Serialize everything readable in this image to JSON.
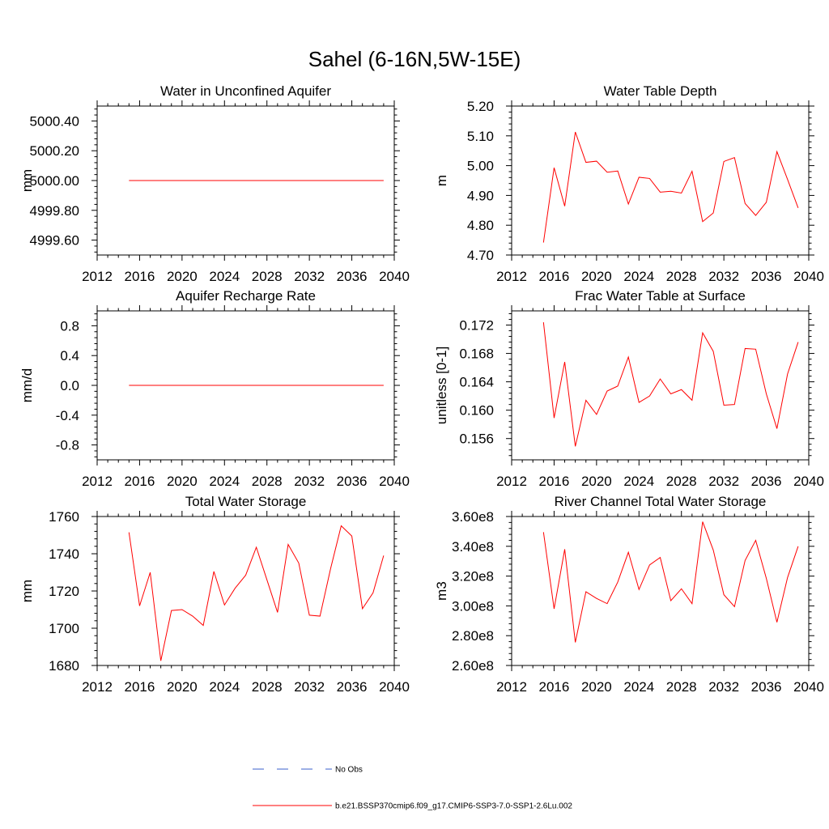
{
  "figure": {
    "title": "Sahel (6-16N,5W-15E)"
  },
  "legend": {
    "items": [
      {
        "label": "No Obs",
        "color": "#3a5fcd",
        "dash": true
      },
      {
        "label": "b.e21.BSSP370cmip6.f09_g17.CMIP6-SSP3-7.0-SSP1-2.6Lu.002",
        "color": "#ff0000",
        "dash": false
      }
    ]
  },
  "chart_data": [
    {
      "type": "line",
      "title": "Water in Unconfined Aquifer",
      "xlabel": "",
      "ylabel": "mm",
      "xlim": [
        2012,
        2040
      ],
      "xticks": [
        2012,
        2016,
        2020,
        2024,
        2028,
        2032,
        2036,
        2040
      ],
      "ylim": [
        4999.5,
        5000.5
      ],
      "yticks": [
        4999.6,
        4999.8,
        5000.0,
        5000.2,
        5000.4
      ],
      "ytick_labels": [
        "4999.60",
        "4999.80",
        "5000.00",
        "5000.20",
        "5000.40"
      ],
      "x": [
        2015,
        2016,
        2017,
        2018,
        2019,
        2020,
        2021,
        2022,
        2023,
        2024,
        2025,
        2026,
        2027,
        2028,
        2029,
        2030,
        2031,
        2032,
        2033,
        2034,
        2035,
        2036,
        2037,
        2038,
        2039
      ],
      "series": [
        {
          "color": "#ff0000",
          "values": [
            5000.0,
            5000.0,
            5000.0,
            5000.0,
            5000.0,
            5000.0,
            5000.0,
            5000.0,
            5000.0,
            5000.0,
            5000.0,
            5000.0,
            5000.0,
            5000.0,
            5000.0,
            5000.0,
            5000.0,
            5000.0,
            5000.0,
            5000.0,
            5000.0,
            5000.0,
            5000.0,
            5000.0,
            5000.0
          ]
        }
      ]
    },
    {
      "type": "line",
      "title": "Water Table Depth",
      "xlabel": "",
      "ylabel": "m",
      "xlim": [
        2012,
        2040
      ],
      "xticks": [
        2012,
        2016,
        2020,
        2024,
        2028,
        2032,
        2036,
        2040
      ],
      "ylim": [
        4.7,
        5.2
      ],
      "yticks": [
        4.7,
        4.8,
        4.9,
        5.0,
        5.1,
        5.2
      ],
      "ytick_labels": [
        "4.70",
        "4.80",
        "4.90",
        "5.00",
        "5.10",
        "5.20"
      ],
      "x": [
        2015,
        2016,
        2017,
        2018,
        2019,
        2020,
        2021,
        2022,
        2023,
        2024,
        2025,
        2026,
        2027,
        2028,
        2029,
        2030,
        2031,
        2032,
        2033,
        2034,
        2035,
        2036,
        2037,
        2038,
        2039
      ],
      "series": [
        {
          "color": "#ff0000",
          "values": [
            4.742,
            4.993,
            4.864,
            5.113,
            5.011,
            5.015,
            4.978,
            4.982,
            4.871,
            4.961,
            4.957,
            4.911,
            4.914,
            4.908,
            4.981,
            4.812,
            4.841,
            5.014,
            5.027,
            4.873,
            4.833,
            4.877,
            5.047,
            4.954,
            4.858
          ]
        }
      ]
    },
    {
      "type": "line",
      "title": "Aquifer Recharge Rate",
      "xlabel": "",
      "ylabel": "mm/d",
      "xlim": [
        2012,
        2040
      ],
      "xticks": [
        2012,
        2016,
        2020,
        2024,
        2028,
        2032,
        2036,
        2040
      ],
      "ylim": [
        -1.0,
        1.0
      ],
      "yticks": [
        -0.8,
        -0.4,
        0.0,
        0.4,
        0.8
      ],
      "ytick_labels": [
        "-0.8",
        "-0.4",
        "0.0",
        "0.4",
        "0.8"
      ],
      "x": [
        2015,
        2016,
        2017,
        2018,
        2019,
        2020,
        2021,
        2022,
        2023,
        2024,
        2025,
        2026,
        2027,
        2028,
        2029,
        2030,
        2031,
        2032,
        2033,
        2034,
        2035,
        2036,
        2037,
        2038,
        2039
      ],
      "series": [
        {
          "color": "#ff0000",
          "values": [
            0,
            0,
            0,
            0,
            0,
            0,
            0,
            0,
            0,
            0,
            0,
            0,
            0,
            0,
            0,
            0,
            0,
            0,
            0,
            0,
            0,
            0,
            0,
            0,
            0
          ]
        }
      ]
    },
    {
      "type": "line",
      "title": "Frac Water Table at Surface",
      "xlabel": "",
      "ylabel": "unitless [0-1]",
      "xlim": [
        2012,
        2040
      ],
      "xticks": [
        2012,
        2016,
        2020,
        2024,
        2028,
        2032,
        2036,
        2040
      ],
      "ylim": [
        0.153,
        0.174
      ],
      "yticks": [
        0.156,
        0.16,
        0.164,
        0.168,
        0.172
      ],
      "ytick_labels": [
        "0.156",
        "0.160",
        "0.164",
        "0.168",
        "0.172"
      ],
      "x": [
        2015,
        2016,
        2017,
        2018,
        2019,
        2020,
        2021,
        2022,
        2023,
        2024,
        2025,
        2026,
        2027,
        2028,
        2029,
        2030,
        2031,
        2032,
        2033,
        2034,
        2035,
        2036,
        2037,
        2038,
        2039
      ],
      "series": [
        {
          "color": "#ff0000",
          "values": [
            0.1724,
            0.1589,
            0.1668,
            0.1549,
            0.1614,
            0.1594,
            0.1627,
            0.1634,
            0.1675,
            0.1611,
            0.162,
            0.1644,
            0.1623,
            0.1629,
            0.1614,
            0.1709,
            0.1683,
            0.1607,
            0.1608,
            0.1687,
            0.1686,
            0.1623,
            0.1574,
            0.1651,
            0.1696
          ]
        }
      ]
    },
    {
      "type": "line",
      "title": "Total Water Storage",
      "xlabel": "",
      "ylabel": "mm",
      "xlim": [
        2012,
        2040
      ],
      "xticks": [
        2012,
        2016,
        2020,
        2024,
        2028,
        2032,
        2036,
        2040
      ],
      "ylim": [
        1680,
        1760
      ],
      "yticks": [
        1680,
        1700,
        1720,
        1740,
        1760
      ],
      "ytick_labels": [
        "1680",
        "1700",
        "1720",
        "1740",
        "1760"
      ],
      "x": [
        2015,
        2016,
        2017,
        2018,
        2019,
        2020,
        2021,
        2022,
        2023,
        2024,
        2025,
        2026,
        2027,
        2028,
        2029,
        2030,
        2031,
        2032,
        2033,
        2034,
        2035,
        2036,
        2037,
        2038,
        2039
      ],
      "series": [
        {
          "color": "#ff0000",
          "values": [
            1751.5,
            1712.0,
            1730.0,
            1682.5,
            1709.5,
            1710.0,
            1706.5,
            1701.5,
            1730.5,
            1712.5,
            1721.5,
            1728.5,
            1743.5,
            1726.0,
            1708.5,
            1745.0,
            1735.0,
            1707.0,
            1706.5,
            1732.0,
            1755.0,
            1749.5,
            1710.5,
            1719.0,
            1739.0
          ]
        }
      ]
    },
    {
      "type": "line",
      "title": "River Channel Total Water Storage",
      "xlabel": "",
      "ylabel": "m3",
      "xlim": [
        2012,
        2040
      ],
      "xticks": [
        2012,
        2016,
        2020,
        2024,
        2028,
        2032,
        2036,
        2040
      ],
      "ylim": [
        260000000,
        360000000
      ],
      "yticks": [
        260000000,
        280000000,
        300000000,
        320000000,
        340000000,
        360000000
      ],
      "ytick_labels": [
        "2.60e8",
        "2.80e8",
        "3.00e8",
        "3.20e8",
        "3.40e8",
        "3.60e8"
      ],
      "x": [
        2015,
        2016,
        2017,
        2018,
        2019,
        2020,
        2021,
        2022,
        2023,
        2024,
        2025,
        2026,
        2027,
        2028,
        2029,
        2030,
        2031,
        2032,
        2033,
        2034,
        2035,
        2036,
        2037,
        2038,
        2039
      ],
      "series": [
        {
          "color": "#ff0000",
          "values": [
            349500000,
            298000000,
            338000000,
            275500000,
            309500000,
            305000000,
            301500000,
            316000000,
            336000000,
            311000000,
            327500000,
            332500000,
            303500000,
            311500000,
            301500000,
            356500000,
            337500000,
            307500000,
            299500000,
            330500000,
            344000000,
            318500000,
            289000000,
            319000000,
            340000000
          ]
        }
      ]
    }
  ]
}
